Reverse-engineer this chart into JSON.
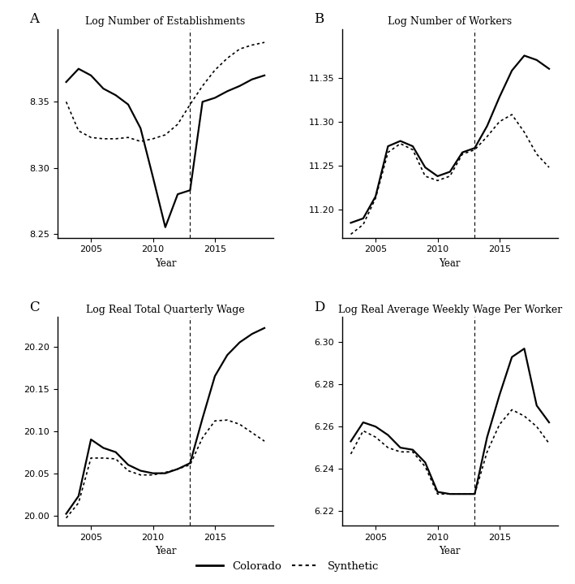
{
  "panel_A": {
    "title": "Log Number of Establishments",
    "label": "A",
    "years": [
      2003,
      2004,
      2005,
      2006,
      2007,
      2008,
      2009,
      2010,
      2011,
      2012,
      2013,
      2014,
      2015,
      2016,
      2017,
      2018,
      2019
    ],
    "colorado": [
      8.365,
      8.375,
      8.37,
      8.36,
      8.355,
      8.348,
      8.33,
      8.293,
      8.255,
      8.28,
      8.283,
      8.35,
      8.353,
      8.358,
      8.362,
      8.367,
      8.37
    ],
    "synthetic": [
      8.35,
      8.328,
      8.323,
      8.322,
      8.322,
      8.323,
      8.32,
      8.322,
      8.325,
      8.333,
      8.348,
      8.362,
      8.374,
      8.383,
      8.39,
      8.393,
      8.395
    ],
    "ylim": [
      8.247,
      8.405
    ],
    "yticks": [
      8.25,
      8.3,
      8.35
    ],
    "vline": 2013
  },
  "panel_B": {
    "title": "Log Number of Workers",
    "label": "B",
    "years": [
      2003,
      2004,
      2005,
      2006,
      2007,
      2008,
      2009,
      2010,
      2011,
      2012,
      2013,
      2014,
      2015,
      2016,
      2017,
      2018,
      2019
    ],
    "colorado": [
      11.185,
      11.19,
      11.215,
      11.272,
      11.278,
      11.272,
      11.248,
      11.238,
      11.243,
      11.265,
      11.27,
      11.295,
      11.328,
      11.358,
      11.375,
      11.37,
      11.36
    ],
    "synthetic": [
      11.172,
      11.183,
      11.213,
      11.265,
      11.275,
      11.268,
      11.238,
      11.233,
      11.238,
      11.263,
      11.268,
      11.283,
      11.3,
      11.308,
      11.288,
      11.263,
      11.248
    ],
    "ylim": [
      11.168,
      11.405
    ],
    "yticks": [
      11.2,
      11.25,
      11.3,
      11.35
    ],
    "vline": 2013
  },
  "panel_C": {
    "title": "Log Real Total Quarterly Wage",
    "label": "C",
    "years": [
      2003,
      2004,
      2005,
      2006,
      2007,
      2008,
      2009,
      2010,
      2011,
      2012,
      2013,
      2014,
      2015,
      2016,
      2017,
      2018,
      2019
    ],
    "colorado": [
      20.002,
      20.023,
      20.09,
      20.08,
      20.075,
      20.06,
      20.053,
      20.05,
      20.05,
      20.055,
      20.062,
      20.115,
      20.165,
      20.19,
      20.205,
      20.215,
      20.222
    ],
    "synthetic": [
      19.997,
      20.015,
      20.068,
      20.068,
      20.067,
      20.053,
      20.048,
      20.048,
      20.051,
      20.055,
      20.06,
      20.092,
      20.112,
      20.113,
      20.108,
      20.098,
      20.088
    ],
    "ylim": [
      19.988,
      20.235
    ],
    "yticks": [
      20.0,
      20.05,
      20.1,
      20.15,
      20.2
    ],
    "vline": 2013
  },
  "panel_D": {
    "title": "Log Real Average Weekly Wage Per Worker",
    "label": "D",
    "years": [
      2003,
      2004,
      2005,
      2006,
      2007,
      2008,
      2009,
      2010,
      2011,
      2012,
      2013,
      2014,
      2015,
      2016,
      2017,
      2018,
      2019
    ],
    "colorado": [
      6.253,
      6.262,
      6.26,
      6.256,
      6.25,
      6.249,
      6.243,
      6.229,
      6.228,
      6.228,
      6.228,
      6.255,
      6.275,
      6.293,
      6.297,
      6.27,
      6.262
    ],
    "synthetic": [
      6.247,
      6.258,
      6.255,
      6.25,
      6.248,
      6.248,
      6.241,
      6.228,
      6.228,
      6.228,
      6.228,
      6.248,
      6.261,
      6.268,
      6.265,
      6.26,
      6.252
    ],
    "ylim": [
      6.213,
      6.312
    ],
    "yticks": [
      6.22,
      6.24,
      6.26,
      6.28,
      6.3
    ],
    "vline": 2013
  },
  "xlabel": "Year",
  "vline_x": 2013,
  "colorado_label": "Colorado",
  "synthetic_label": "Synthetic",
  "xticks": [
    2005,
    2010,
    2015
  ],
  "xlim": [
    2002.3,
    2019.7
  ]
}
